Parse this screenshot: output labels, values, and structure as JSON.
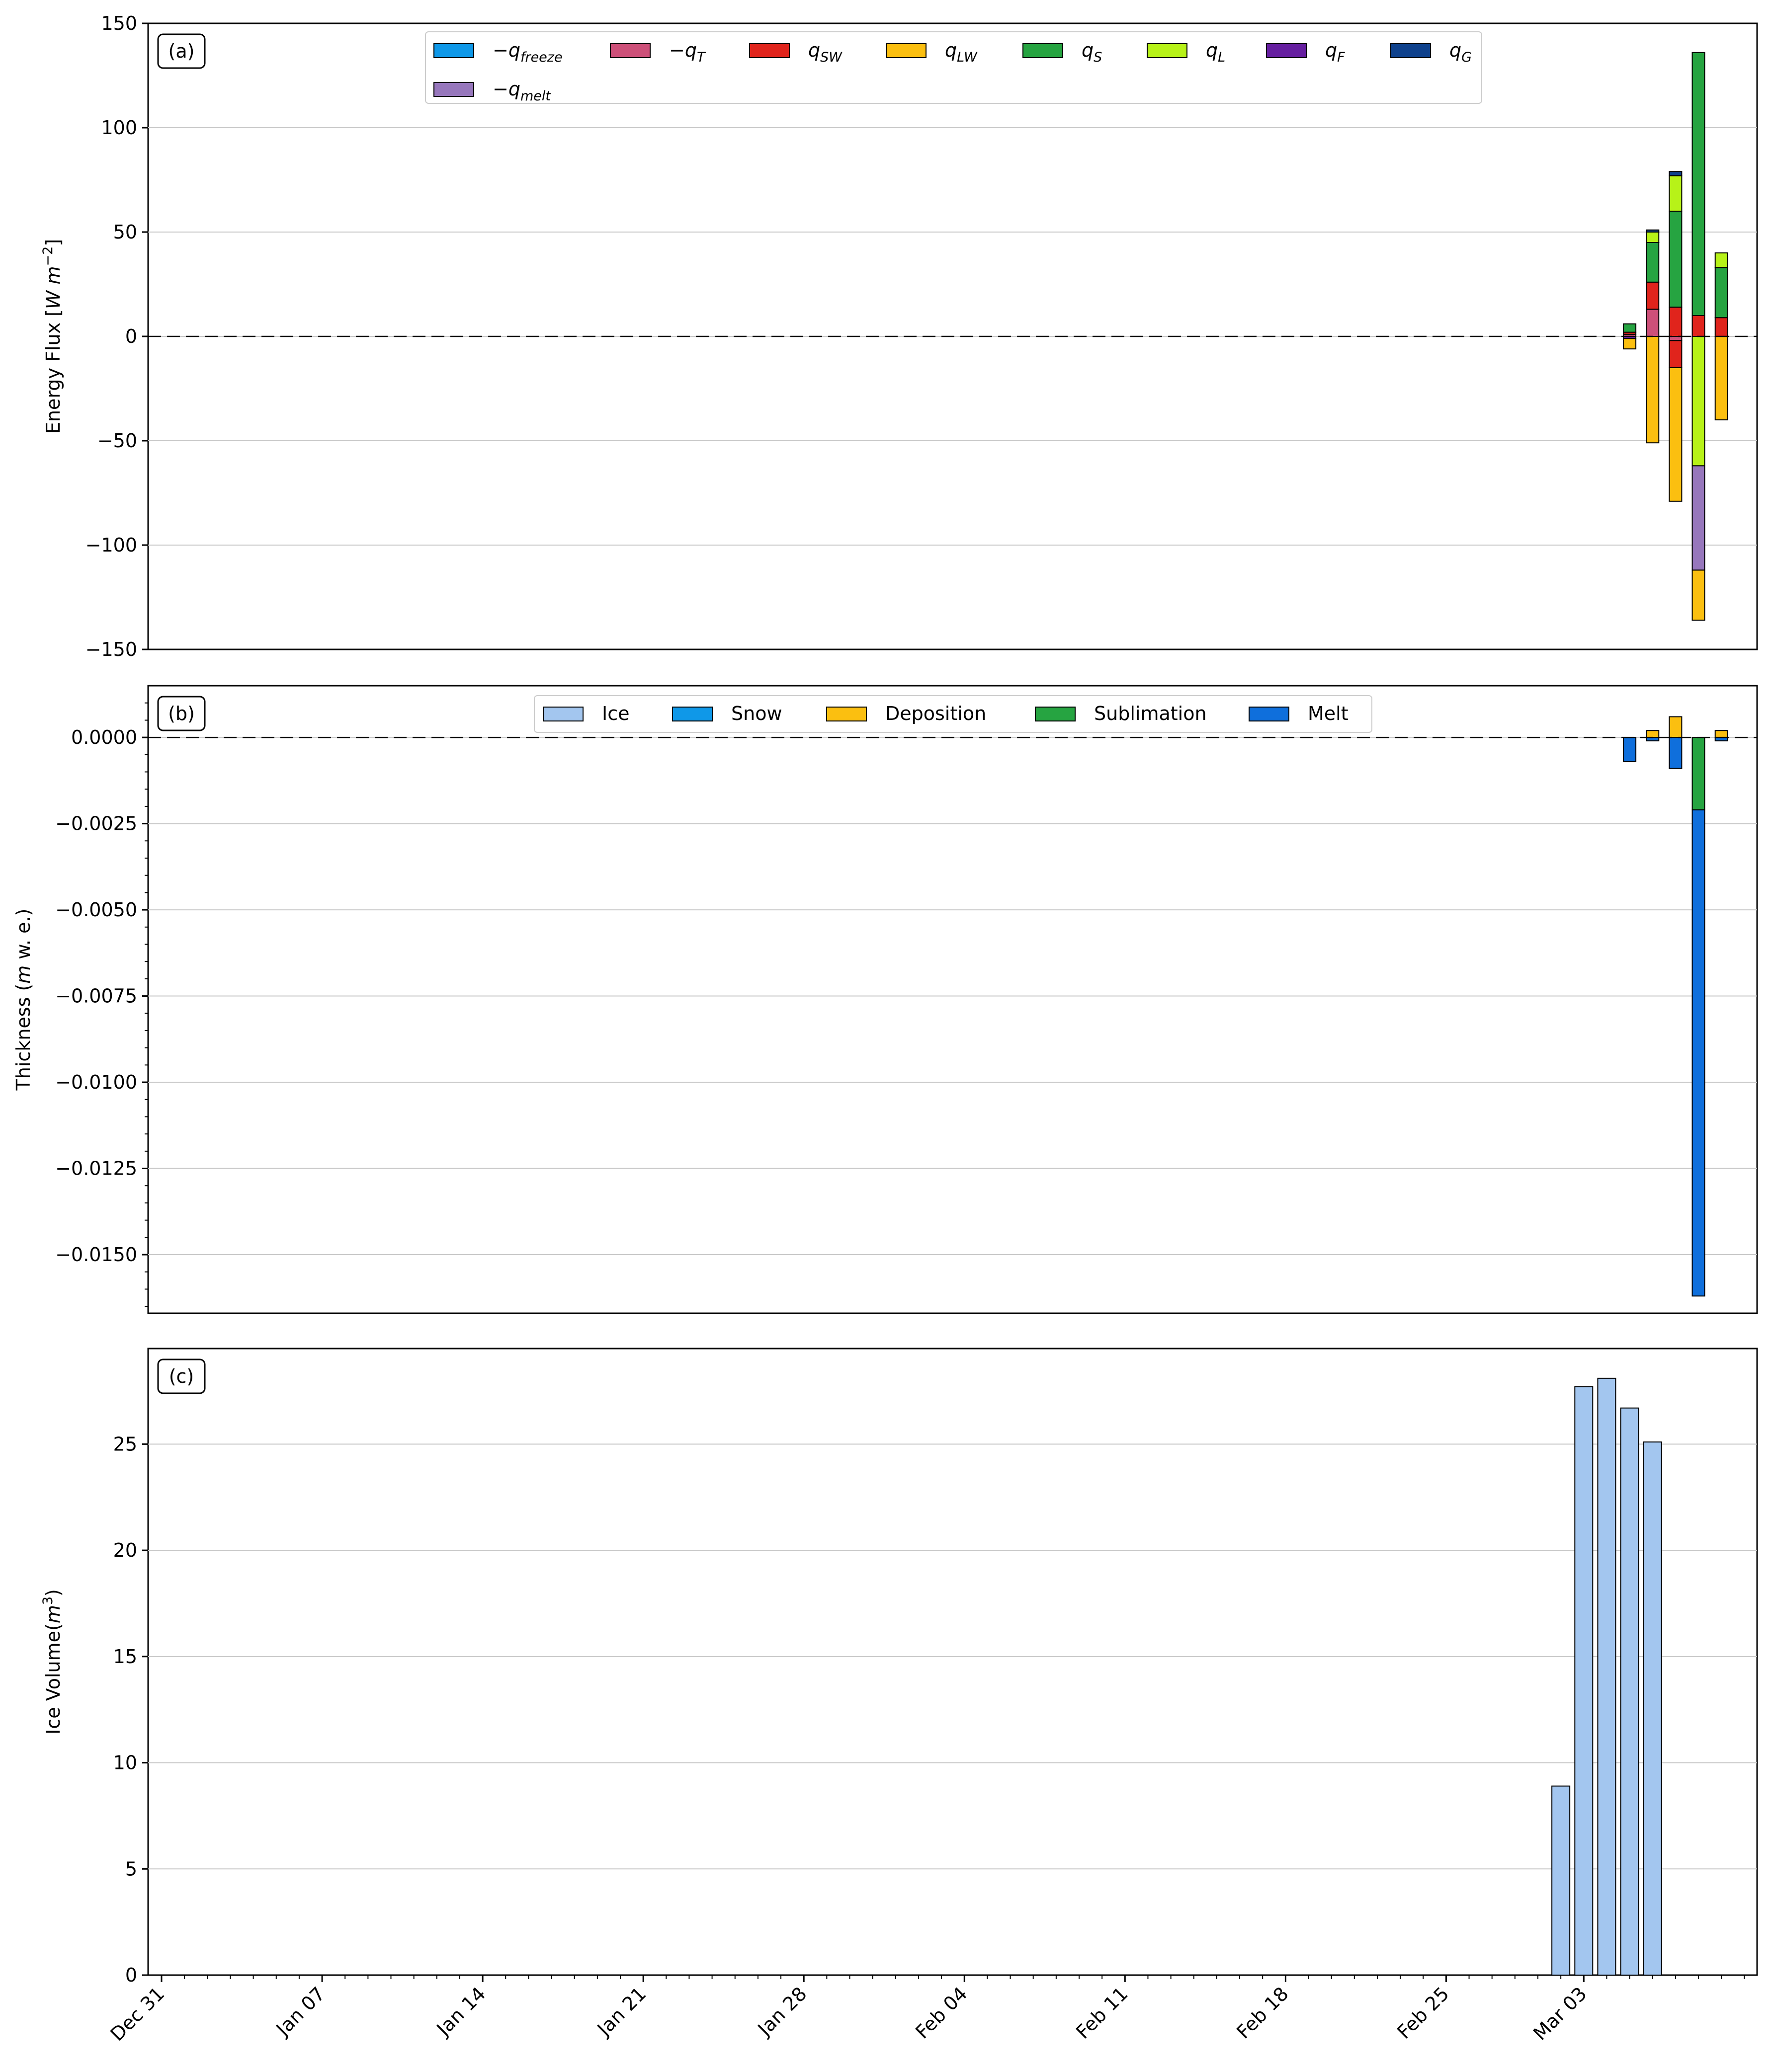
{
  "colors": {
    "q_freeze": "#0f98e8",
    "q_T": "#cd5079",
    "q_SW": "#e0241c",
    "q_LW": "#fbbf10",
    "q_S": "#26a441",
    "q_L": "#b7f218",
    "q_F": "#661fa0",
    "q_G": "#0e418c",
    "q_melt": "#9777bc",
    "ice": "#a3c6ef",
    "snow": "#0f98e8",
    "deposition": "#fbbf10",
    "sublimation": "#26a441",
    "melt": "#0f6fdc",
    "grid": "#c8c8c8"
  },
  "x_axis": {
    "tick_labels": [
      "Dec 31",
      "Jan 07",
      "Jan 14",
      "Jan 21",
      "Jan 28",
      "Feb 04",
      "Feb 11",
      "Feb 18",
      "Feb 25",
      "Mar 03"
    ],
    "tick_dates": [
      "Dec 31",
      "Jan 07",
      "Jan 14",
      "Jan 21",
      "Jan 28",
      "Feb 04",
      "Feb 11",
      "Feb 18",
      "Feb 25",
      "Mar 03"
    ],
    "minor_ticks": "daily",
    "date_range": [
      "Dec 31",
      "Mar 10"
    ]
  },
  "chart_data": [
    {
      "type": "bar",
      "stacked": true,
      "panel_label": "(a)",
      "ylabel": "Energy Flux [W m⁻²]",
      "ylabel_parts": {
        "prefix": "Energy Flux [",
        "unit": "W m",
        "exp": "−2",
        "suffix": "]"
      },
      "ylim": [
        -150,
        150
      ],
      "yticks": [
        -150,
        -100,
        -50,
        0,
        50,
        100,
        150
      ],
      "ytick_labels": [
        "−150",
        "−100",
        "−50",
        "0",
        "50",
        "100",
        "150"
      ],
      "grid": "y",
      "zero_line": "dashed",
      "legend": {
        "placement": "top-center",
        "columns": 8,
        "entries": [
          {
            "key": "q_freeze",
            "sign": "−",
            "base": "q",
            "sub": "freeze"
          },
          {
            "key": "q_T",
            "sign": "−",
            "base": "q",
            "sub": "T"
          },
          {
            "key": "q_SW",
            "sign": "",
            "base": "q",
            "sub": "SW"
          },
          {
            "key": "q_LW",
            "sign": "",
            "base": "q",
            "sub": "LW"
          },
          {
            "key": "q_S",
            "sign": "",
            "base": "q",
            "sub": "S"
          },
          {
            "key": "q_L",
            "sign": "",
            "base": "q",
            "sub": "L"
          },
          {
            "key": "q_F",
            "sign": "",
            "base": "q",
            "sub": "F"
          },
          {
            "key": "q_G",
            "sign": "",
            "base": "q",
            "sub": "G"
          },
          {
            "key": "q_melt",
            "sign": "−",
            "base": "q",
            "sub": "melt"
          }
        ]
      },
      "x": [
        "Mar 05",
        "Mar 06",
        "Mar 07",
        "Mar 08",
        "Mar 09"
      ],
      "series": [
        {
          "key": "q_T",
          "positive": [
            1,
            13,
            0,
            0,
            0
          ],
          "negative": [
            0,
            0,
            -2,
            0,
            0
          ]
        },
        {
          "key": "q_SW",
          "positive": [
            1,
            13,
            14,
            10,
            9
          ],
          "negative": [
            0,
            0,
            -13,
            0,
            0
          ]
        },
        {
          "key": "q_S",
          "positive": [
            4,
            19,
            46,
            126,
            24
          ],
          "negative": [
            0,
            0,
            0,
            0,
            0
          ]
        },
        {
          "key": "q_L",
          "positive": [
            0,
            5,
            17,
            0,
            7
          ],
          "negative": [
            0,
            0,
            0,
            -62,
            0
          ]
        },
        {
          "key": "q_G",
          "positive": [
            0,
            1,
            2,
            0,
            0
          ],
          "negative": [
            0,
            0,
            0,
            0,
            0
          ]
        },
        {
          "key": "q_F",
          "positive": [
            0,
            0,
            0,
            0,
            0
          ],
          "negative": [
            -1,
            0,
            0,
            0,
            0
          ]
        },
        {
          "key": "q_melt",
          "positive": [
            0,
            0,
            0,
            0,
            0
          ],
          "negative": [
            0,
            0,
            0,
            -50,
            0
          ]
        },
        {
          "key": "q_LW",
          "positive": [
            0,
            0,
            0,
            0,
            0
          ],
          "negative": [
            -5,
            -51,
            -64,
            -24,
            -40
          ]
        }
      ]
    },
    {
      "type": "bar",
      "stacked": true,
      "panel_label": "(b)",
      "ylabel": "Thickness (m w. e.)",
      "ylabel_parts": {
        "prefix": "Thickness (",
        "unit": "m",
        "suffix": " w. e.)"
      },
      "ylim": [
        -0.0167,
        0.0015
      ],
      "yticks": [
        -0.015,
        -0.0125,
        -0.01,
        -0.0075,
        -0.005,
        -0.0025,
        0
      ],
      "ytick_labels": [
        "−0.0150",
        "−0.0125",
        "−0.0100",
        "−0.0075",
        "−0.0050",
        "−0.0025",
        "0.0000"
      ],
      "grid": "y",
      "zero_line": "dashed",
      "legend": {
        "placement": "top-center",
        "columns": 5,
        "entries": [
          {
            "key": "ice",
            "label": "Ice"
          },
          {
            "key": "snow",
            "label": "Snow"
          },
          {
            "key": "deposition",
            "label": "Deposition"
          },
          {
            "key": "sublimation",
            "label": "Sublimation"
          },
          {
            "key": "melt",
            "label": "Melt"
          }
        ]
      },
      "x": [
        "Mar 05",
        "Mar 06",
        "Mar 07",
        "Mar 08",
        "Mar 09"
      ],
      "series": [
        {
          "key": "deposition",
          "positive": [
            0,
            0.0002,
            0.0006,
            0,
            0.0002
          ],
          "negative": [
            0,
            0,
            0,
            0,
            0
          ]
        },
        {
          "key": "sublimation",
          "positive": [
            0,
            0,
            0,
            0,
            0
          ],
          "negative": [
            0,
            0,
            0,
            -0.0021,
            0
          ]
        },
        {
          "key": "melt",
          "positive": [
            0,
            0,
            0,
            0,
            0
          ],
          "negative": [
            -0.0007,
            -0.0001,
            -0.0009,
            -0.0141,
            -0.0001
          ]
        }
      ]
    },
    {
      "type": "bar",
      "stacked": false,
      "panel_label": "(c)",
      "ylabel": "Ice Volume(m³)",
      "ylabel_parts": {
        "prefix": "Ice Volume(",
        "unit": "m",
        "exp": "3",
        "suffix": ")"
      },
      "ylim": [
        0,
        29.5
      ],
      "yticks": [
        0,
        5,
        10,
        15,
        20,
        25
      ],
      "ytick_labels": [
        "0",
        "5",
        "10",
        "15",
        "20",
        "25"
      ],
      "grid": "y",
      "x": [
        "Mar 02",
        "Mar 03",
        "Mar 04",
        "Mar 05",
        "Mar 06"
      ],
      "series": [
        {
          "key": "ice",
          "name": "Ice",
          "values": [
            8.9,
            27.7,
            28.1,
            26.7,
            25.1
          ]
        }
      ]
    }
  ]
}
